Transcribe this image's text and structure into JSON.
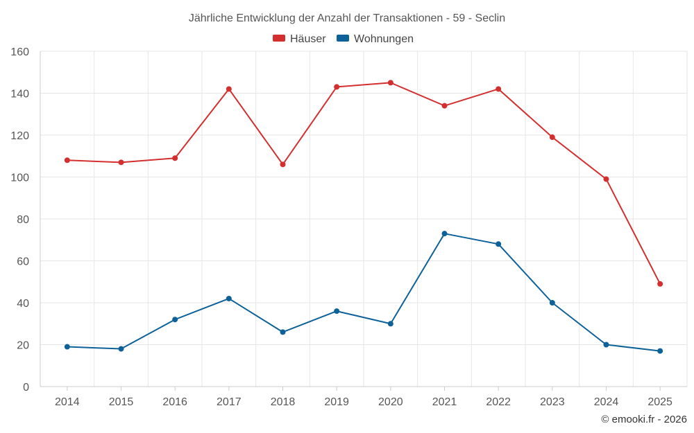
{
  "chart_data": {
    "type": "line",
    "title": "Jährliche Entwicklung der Anzahl der Transaktionen - 59 - Seclin",
    "categories": [
      "2014",
      "2015",
      "2016",
      "2017",
      "2018",
      "2019",
      "2020",
      "2021",
      "2022",
      "2023",
      "2024",
      "2025"
    ],
    "series": [
      {
        "name": "Häuser",
        "color": "#d32f2f",
        "values": [
          108,
          107,
          109,
          142,
          106,
          143,
          145,
          134,
          142,
          119,
          99,
          49
        ]
      },
      {
        "name": "Wohnungen",
        "color": "#0d6199",
        "values": [
          19,
          18,
          32,
          42,
          26,
          36,
          30,
          73,
          68,
          40,
          20,
          17
        ]
      }
    ],
    "xlabel": "",
    "ylabel": "",
    "ylim": [
      0,
      160
    ],
    "yticks": [
      0,
      20,
      40,
      60,
      80,
      100,
      120,
      140,
      160
    ],
    "grid": true,
    "legend_position": "top-center"
  },
  "credit": "© emooki.fr - 2026"
}
